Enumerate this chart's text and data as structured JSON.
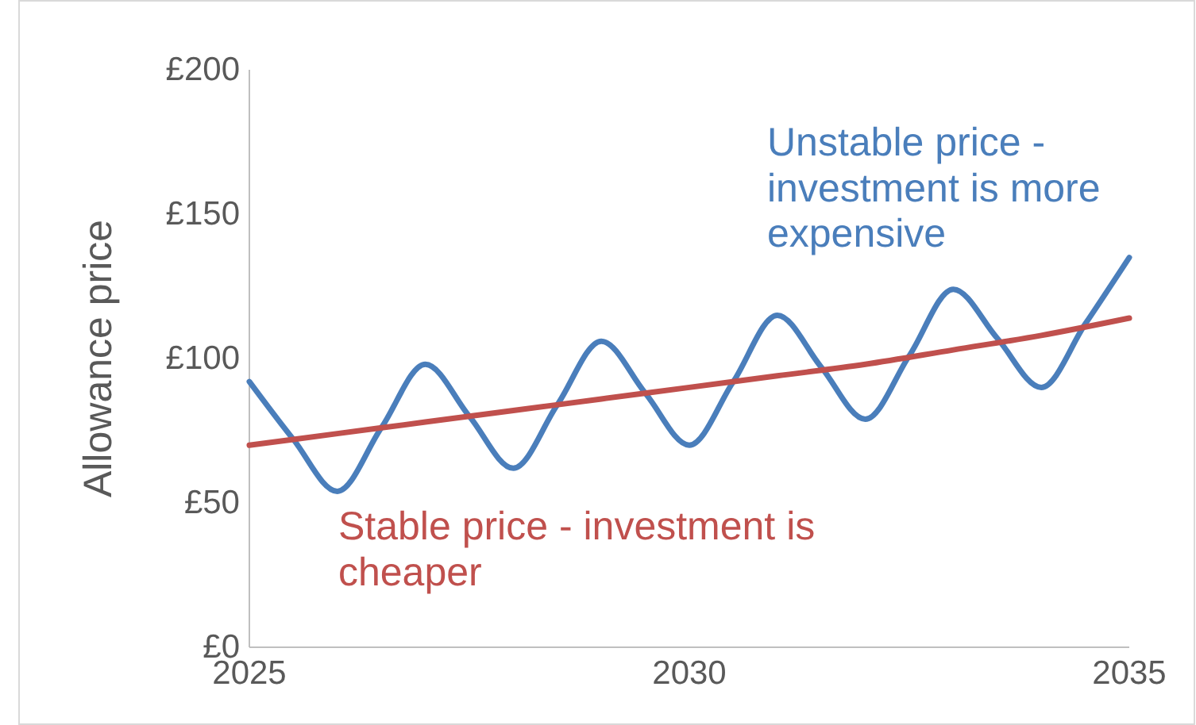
{
  "chart_data": {
    "type": "line",
    "ylabel": "Allowance price",
    "xlim": [
      2025,
      2035
    ],
    "xticks": [
      2025,
      2030,
      2035
    ],
    "ylim": [
      0,
      200
    ],
    "yticks": [
      {
        "value": 0,
        "label": "£0"
      },
      {
        "value": 50,
        "label": "£50"
      },
      {
        "value": 100,
        "label": "£100"
      },
      {
        "value": 150,
        "label": "£150"
      },
      {
        "value": 200,
        "label": "£200"
      }
    ],
    "grid": false,
    "marker": "none",
    "line_style": "solid",
    "series": [
      {
        "name": "Unstable price - investment is more expensive",
        "color": "#4a7ebb",
        "x": [
          2025,
          2025.5,
          2026,
          2026.5,
          2027,
          2027.5,
          2028,
          2028.5,
          2029,
          2029.5,
          2030,
          2030.5,
          2031,
          2031.5,
          2032,
          2032.5,
          2033,
          2033.5,
          2034,
          2034.5,
          2035
        ],
        "values": [
          92,
          72,
          54,
          76,
          98,
          80,
          62,
          84,
          106,
          88,
          70,
          92,
          115,
          97,
          79,
          101,
          124,
          107,
          90,
          112,
          135
        ]
      },
      {
        "name": "Stable price - investment is cheaper",
        "color": "#c0504d",
        "x": [
          2025,
          2026,
          2027,
          2028,
          2029,
          2030,
          2031,
          2032,
          2033,
          2034,
          2035
        ],
        "values": [
          70,
          74,
          78,
          82,
          86,
          90,
          94,
          98,
          103,
          108,
          114
        ]
      }
    ]
  }
}
